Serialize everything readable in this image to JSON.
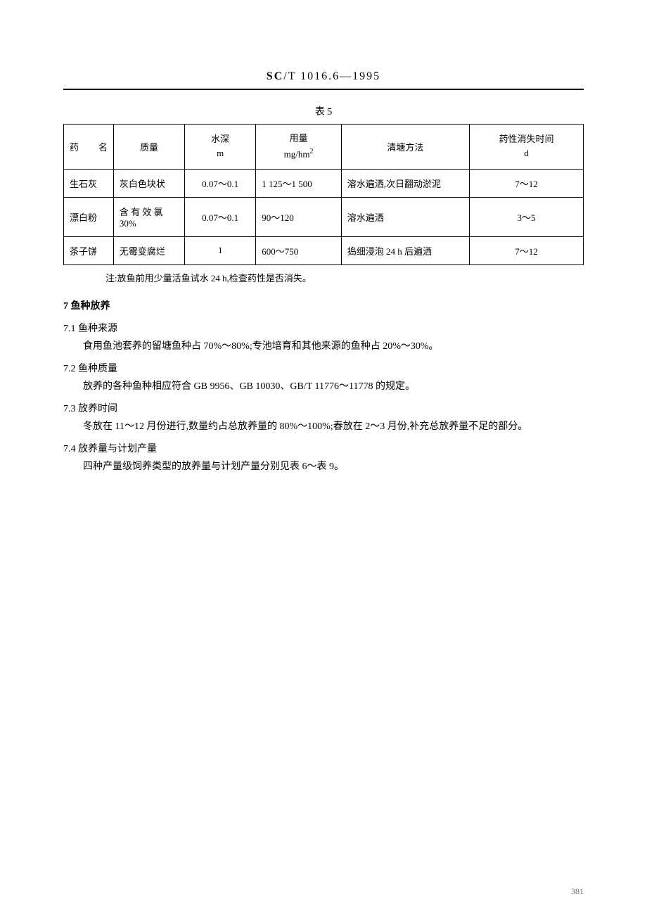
{
  "header": {
    "prefix_bold": "SC",
    "rest": "/T 1016.6—1995"
  },
  "table5": {
    "caption": "表 5",
    "columns": {
      "name": "药    名",
      "quality": "质量",
      "depth_label": "水深",
      "depth_unit": "m",
      "dose_label": "用量",
      "dose_unit": "mg/hm",
      "dose_unit_sup": "2",
      "method": "清塘方法",
      "time_label": "药性消失时间",
      "time_unit": "d"
    },
    "rows": [
      {
        "name": "生石灰",
        "quality": "灰白色块状",
        "depth": "0.07～0.1",
        "dose": "1 125～1 500",
        "method": "溶水遍洒,次日翻动淤泥",
        "time": "7～12"
      },
      {
        "name": "漂白粉",
        "quality": "含 有 效 氯 30%",
        "depth": "0.07～0.1",
        "dose": "90～120",
        "method": "溶水遍洒",
        "time": "3～5"
      },
      {
        "name": "茶子饼",
        "quality": "无霉变腐烂",
        "depth": "1",
        "dose": "600～750",
        "method": "捣细浸泡 24 h 后遍洒",
        "time": "7～12"
      }
    ],
    "note": "注:放鱼前用少量活鱼试水 24 h,检查药性是否消失。"
  },
  "section7": {
    "heading": "7  鱼种放养",
    "sub1": {
      "title": "7.1  鱼种来源",
      "body": "食用鱼池套养的留塘鱼种占 70%～80%;专池培育和其他来源的鱼种占 20%～30%。"
    },
    "sub2": {
      "title": "7.2  鱼种质量",
      "body": "放养的各种鱼种相应符合 GB 9956、GB 10030、GB/T 11776～11778 的规定。"
    },
    "sub3": {
      "title": "7.3  放养时间",
      "body": "冬放在 11～12 月份进行,数量约占总放养量的 80%～100%;春放在 2～3 月份,补充总放养量不足的部分。"
    },
    "sub4": {
      "title": "7.4  放养量与计划产量",
      "body": "四种产量级饲养类型的放养量与计划产量分别见表 6～表 9。"
    }
  },
  "page_number": "381"
}
